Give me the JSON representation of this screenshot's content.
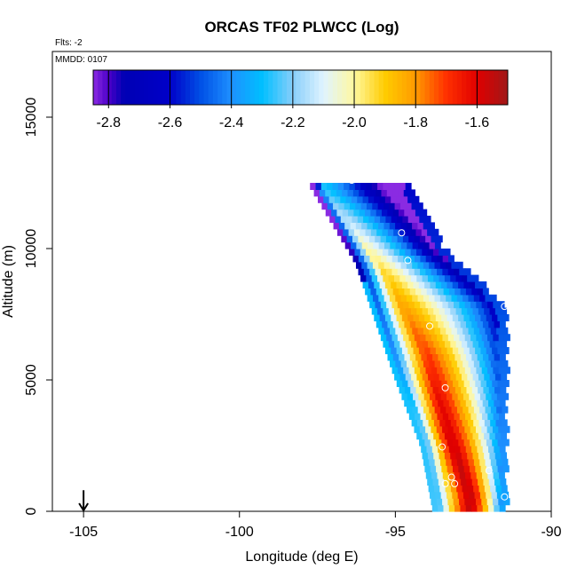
{
  "chart_data": {
    "type": "heatmap",
    "title": "ORCAS TF02 PLWCC (Log)",
    "flts_label": "Flts: -2",
    "mmdd_label": "MMDD: 0107",
    "xlabel": "Longitude (deg E)",
    "ylabel": "Altitude (m)",
    "xlim": [
      -106,
      -90
    ],
    "ylim": [
      0,
      17500
    ],
    "x_ticks": [
      -105,
      -100,
      -95,
      -90
    ],
    "x_tick_labels": [
      "-105",
      "-100",
      "-95",
      "-90"
    ],
    "y_ticks": [
      0,
      5000,
      10000,
      15000
    ],
    "y_tick_labels": [
      "0",
      "5000",
      "10000",
      "15000"
    ],
    "colorbar": {
      "range": [
        -2.85,
        -1.5
      ],
      "ticks": [
        -2.8,
        -2.6,
        -2.4,
        -2.2,
        -2.0,
        -1.8,
        -1.6
      ],
      "tick_labels": [
        "-2.8",
        "-2.6",
        "-2.4",
        "-2.2",
        "-2.0",
        "-1.8",
        "-1.6"
      ],
      "stops": [
        {
          "v": -2.85,
          "color": "#8a2be2"
        },
        {
          "v": -2.8,
          "color": "#4b00c8"
        },
        {
          "v": -2.75,
          "color": "#0000b4"
        },
        {
          "v": -2.6,
          "color": "#0000c8"
        },
        {
          "v": -2.5,
          "color": "#0050e6"
        },
        {
          "v": -2.4,
          "color": "#1e90ff"
        },
        {
          "v": -2.3,
          "color": "#00bfff"
        },
        {
          "v": -2.2,
          "color": "#87cefa"
        },
        {
          "v": -2.1,
          "color": "#e0f4ff"
        },
        {
          "v": -2.0,
          "color": "#fff8a0"
        },
        {
          "v": -1.9,
          "color": "#ffcc00"
        },
        {
          "v": -1.8,
          "color": "#ff9a00"
        },
        {
          "v": -1.7,
          "color": "#ff3000"
        },
        {
          "v": -1.6,
          "color": "#e00000"
        },
        {
          "v": -1.5,
          "color": "#a01818"
        }
      ]
    },
    "field": {
      "top_line": {
        "x_start": -97.8,
        "x_end": -94.6,
        "alt": 12500
      },
      "left_edge": [
        [
          -97.8,
          12500
        ],
        [
          -96.3,
          9500
        ],
        [
          -95.0,
          5000
        ],
        [
          -94.2,
          2500
        ],
        [
          -93.8,
          0
        ]
      ],
      "right_edge": [
        [
          -94.6,
          12500
        ],
        [
          -93.5,
          10000
        ],
        [
          -91.5,
          7800
        ],
        [
          -91.5,
          0
        ]
      ],
      "ridge": [
        [
          -97.3,
          12200
        ],
        [
          -95.3,
          9000
        ],
        [
          -94.0,
          6000
        ],
        [
          -93.3,
          3000
        ],
        [
          -92.6,
          600
        ]
      ],
      "x_step": 0.18,
      "alt_step": 250
    },
    "markers": [
      {
        "lon": -96.4,
        "alt": 12600
      },
      {
        "lon": -95.2,
        "alt": 12700
      },
      {
        "lon": -94.8,
        "alt": 10600
      },
      {
        "lon": -94.6,
        "alt": 9550
      },
      {
        "lon": -91.5,
        "alt": 7800
      },
      {
        "lon": -93.9,
        "alt": 7050
      },
      {
        "lon": -93.4,
        "alt": 4700
      },
      {
        "lon": -93.5,
        "alt": 2450
      },
      {
        "lon": -92.0,
        "alt": 1550
      },
      {
        "lon": -93.2,
        "alt": 1300
      },
      {
        "lon": -93.4,
        "alt": 1050
      },
      {
        "lon": -93.1,
        "alt": 1050
      },
      {
        "lon": -91.5,
        "alt": 550
      }
    ],
    "arrow": {
      "lon": -105,
      "alt_top": 600,
      "alt_bottom": 0
    }
  }
}
